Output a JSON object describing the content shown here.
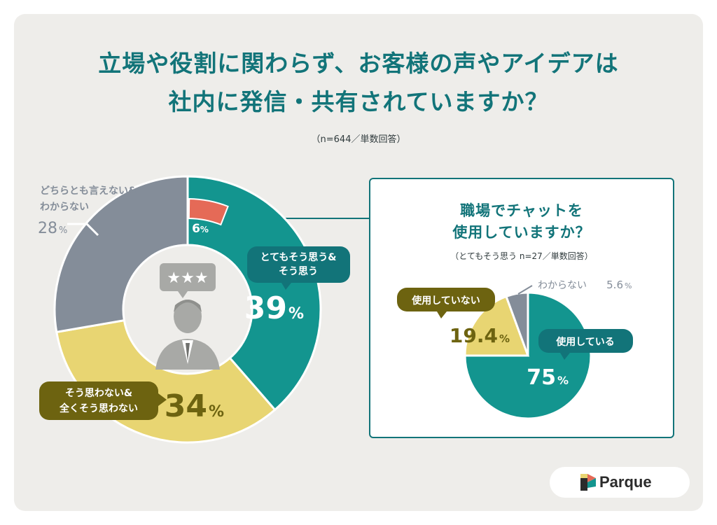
{
  "title": {
    "line1": "立場や役割に関わらず、お客様の声やアイデアは",
    "line2": "社内に発信・共有されていますか？"
  },
  "note": "（n=644／単数回答）",
  "colors": {
    "teal": "#13958f",
    "coral": "#e56a57",
    "yellow": "#e8d572",
    "gray": "#848d99",
    "dark_teal": "#127479",
    "olive": "#6d6310",
    "title": "#127479"
  },
  "chart_data": [
    {
      "type": "pie",
      "variant": "donut",
      "title": "立場や役割に関わらず、お客様の声やアイデアは社内に発信・共有されていますか？",
      "n": 644,
      "slices": [
        {
          "label": "とてもそう思う&そう思う",
          "label_lines": [
            "とてもそう思う&",
            "そう思う"
          ],
          "value": 39,
          "display": "39",
          "unit": "%",
          "color": "#13958f"
        },
        {
          "label": "そう思わない&全くそう思わない",
          "label_lines": [
            "そう思わない&",
            "全くそう思わない"
          ],
          "value": 34,
          "display": "34",
          "unit": "%",
          "color": "#e8d572"
        },
        {
          "label": "どちらとも言えない&わからない",
          "label_lines": [
            "どちらとも言えない&",
            "わからない"
          ],
          "value": 28,
          "display": "28",
          "unit": "%",
          "color": "#848d99"
        }
      ],
      "highlight": {
        "value": 6,
        "display": "6",
        "unit": "%",
        "color": "#e56a57",
        "note": "portion of the first slice that is shown in detail in the right pie"
      }
    },
    {
      "type": "pie",
      "title_lines": [
        "職場でチャットを",
        "使用していますか？"
      ],
      "note": "（とてもそう思う n=27／単数回答）",
      "n": 27,
      "slices": [
        {
          "label": "使用している",
          "value": 75,
          "display": "75",
          "unit": "%",
          "color": "#13958f"
        },
        {
          "label": "使用していない",
          "value": 19.4,
          "display": "19.4",
          "unit": "%",
          "color": "#e8d572"
        },
        {
          "label": "わからない",
          "value": 5.6,
          "display": "5.6",
          "unit": "%",
          "color": "#848d99"
        }
      ]
    }
  ],
  "brand": {
    "name": "Parque"
  }
}
